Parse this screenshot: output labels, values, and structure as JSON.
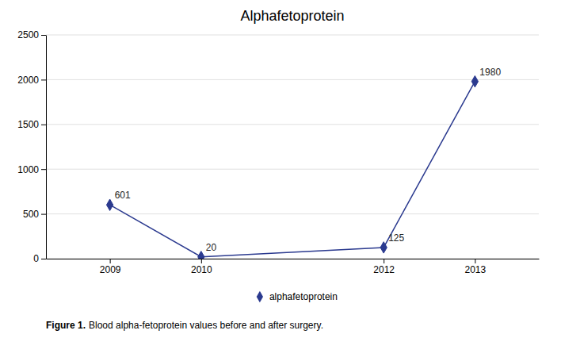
{
  "chart_data": {
    "type": "line",
    "title": "Alphafetoprotein",
    "x": [
      2009,
      2010,
      2012,
      2013
    ],
    "series": [
      {
        "name": "alphafetoprotein",
        "color": "#2B3A8F",
        "marker": "diamond",
        "values": [
          601,
          20,
          125,
          1980
        ]
      }
    ],
    "xlim": [
      2008.3,
      2013.7
    ],
    "xticks": [
      2009,
      2010,
      2012,
      2013
    ],
    "ylim": [
      0,
      2500
    ],
    "yticks": [
      0,
      500,
      1000,
      1500,
      2000,
      2500
    ],
    "grid": true,
    "legend": "bottom",
    "data_labels": true,
    "annotations": [
      "Figure 1.",
      "Blood alpha-fetoprotein values before and after surgery."
    ]
  }
}
